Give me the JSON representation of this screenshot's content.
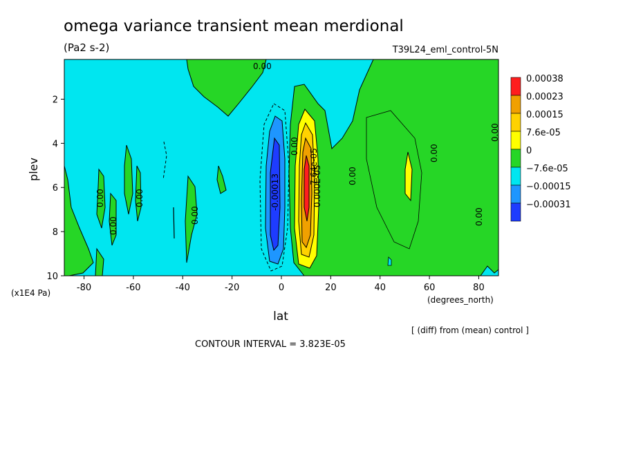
{
  "chart_data": {
    "type": "heatmap",
    "title": "omega variance transient mean merdional",
    "units": "(Pa2 s-2)",
    "run": "T39L24_eml_control-5N",
    "xlabel": "lat",
    "xunits": "(degrees_north)",
    "ylabel": "plev",
    "yunits": "(x1E4 Pa)",
    "diff_note": "[ (diff) from (mean) control ]",
    "contour_interval": "CONTOUR INTERVAL = 3.823E-05",
    "xlim": [
      -88,
      88
    ],
    "ylim": [
      10,
      0.2
    ],
    "x_ticks": [
      -80,
      -60,
      -40,
      -20,
      0,
      20,
      40,
      60,
      80
    ],
    "y_ticks": [
      2,
      4,
      6,
      8,
      10
    ],
    "levels": [
      -0.00031,
      -0.00015,
      -7.6e-05,
      0,
      7.6e-05,
      0.00015,
      0.00023,
      0.00038
    ],
    "legend": [
      {
        "label": "0.00038",
        "color": "#ff1e1e"
      },
      {
        "label": "0.00023",
        "color": "#f0a000"
      },
      {
        "label": "0.00015",
        "color": "#ffd200"
      },
      {
        "label": "7.6e-05",
        "color": "#ffff00"
      },
      {
        "label": "0",
        "color": "#26d626"
      },
      {
        "label": "−7.6e-05",
        "color": "#00e6f0"
      },
      {
        "label": "−0.00015",
        "color": "#1e96ff"
      },
      {
        "label": "−0.00031",
        "color": "#1e3cff"
      }
    ],
    "contour_labels": [
      "0.00",
      "0.00",
      "0.00",
      "0.00",
      "0.00",
      "0.00",
      "0.00",
      "0.00",
      "0.00",
      "0.00",
      "-0.00013",
      "7.64e-05",
      "0.000E-05"
    ]
  }
}
